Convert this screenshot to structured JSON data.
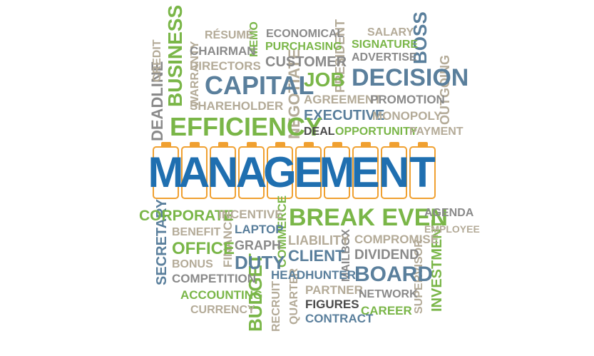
{
  "title_letters": [
    "M",
    "A",
    "N",
    "A",
    "G",
    "E",
    "M",
    "E",
    "N",
    "T"
  ],
  "words": {
    "resume": "RÉSUMÉ",
    "memo": "MEMO",
    "economical": "ECONOMICAL",
    "salary": "SALARY",
    "boss": "BOSS",
    "credit": "CREDIT",
    "business": "BUSINESS",
    "chairman": "CHAIRMAN",
    "purchasing": "PURCHASING",
    "signature": "SIGNATURE",
    "customer": "CUSTOMER",
    "president": "PRESIDENT",
    "advertise": "ADVERTISE",
    "directors": "DIRECTORS",
    "deadline": "DEADLINE",
    "warranty": "WARRANTY",
    "capital": "CAPITAL",
    "negotiate": "NEGOTIATE",
    "job": "JOB",
    "decision": "DECISION",
    "outgoing": "OUTGOING",
    "shareholder": "SHAREHOLDER",
    "agreement": "AGREEMENT",
    "promotion": "PROMOTION",
    "executive": "EXECUTIVE",
    "monopoly": "MONOPOLY",
    "efficiency": "EFFICIENCY",
    "deal": "DEAL",
    "opportunity": "OPPORTUNITY",
    "payment": "PAYMENT",
    "corporate": "CORPORATE",
    "incentive": "INCENTIVE",
    "break_even": "BREAK EVEN",
    "agenda": "AGENDA",
    "benefit": "BENEFIT",
    "laptop": "LAPTOP",
    "commerce": "COMMERCE",
    "employee": "EMPLOYEE",
    "secretary": "SECRETARY",
    "liability": "LIABILITY",
    "compromise": "COMPROMISE",
    "office": "OFFICE",
    "finance": "FINANCE",
    "graph": "GRAPH",
    "mailbox": "MAILBOX",
    "client": "CLIENT",
    "dividend": "DIVIDEND",
    "bonus": "BONUS",
    "duty": "DUTY",
    "supervisor": "SUPERVISOR",
    "investment": "INVESTMENT",
    "competition": "COMPETITION",
    "headhunter": "HEADHUNTER",
    "board": "BOARD",
    "budget": "BUDGET",
    "recruit": "RECRUIT",
    "partner": "PARTNER",
    "accounting": "ACCOUNTING",
    "network": "NETWORK",
    "quarter": "QUARTER",
    "figures": "FIGURES",
    "currency": "CURRENCY",
    "career": "CAREER",
    "contract": "CONTRACT"
  },
  "colors": {
    "title": "#1f6fb0",
    "tile_border": "#f0a030",
    "green": "#7ab648",
    "blue": "#5a7f9c",
    "gray": "#8a8a8a",
    "tan": "#b4ab98"
  }
}
